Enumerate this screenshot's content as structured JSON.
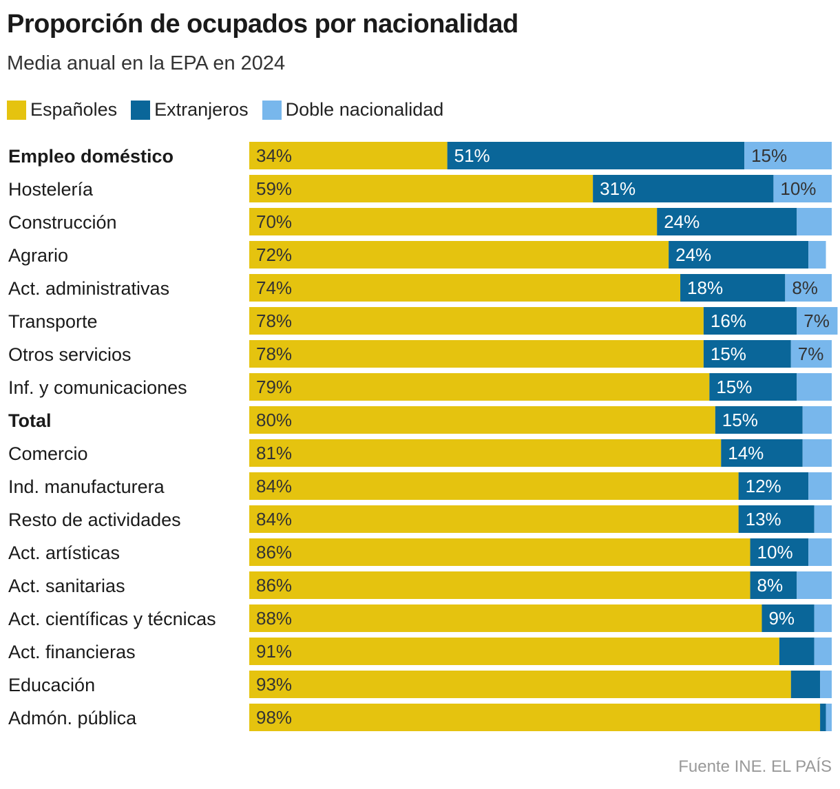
{
  "chart_data": {
    "type": "bar",
    "orientation": "horizontal",
    "stacked": true,
    "title": "Proporción de ocupados por nacionalidad",
    "subtitle": "Media anual en la EPA en 2024",
    "legend_position": "top-left",
    "grid": false,
    "xlim": [
      0,
      100
    ],
    "unit": "%",
    "categories": [
      "Empleo doméstico",
      "Hostelería",
      "Construcción",
      "Agrario",
      "Act. administrativas",
      "Transporte",
      "Otros servicios",
      "Inf. y comunicaciones",
      "Total",
      "Comercio",
      "Ind. manufacturera",
      "Resto de actividades",
      "Act. artísticas",
      "Act. sanitarias",
      "Act. científicas y técnicas",
      "Act. financieras",
      "Educación",
      "Admón. pública"
    ],
    "bold_categories": [
      "Empleo doméstico",
      "Total"
    ],
    "series": [
      {
        "name": "Españoles",
        "color": "#e5c30f",
        "values": [
          34,
          59,
          70,
          72,
          74,
          78,
          78,
          79,
          80,
          81,
          84,
          84,
          86,
          86,
          88,
          91,
          93,
          98
        ],
        "labels": [
          "34%",
          "59%",
          "70%",
          "72%",
          "74%",
          "78%",
          "78%",
          "79%",
          "80%",
          "81%",
          "84%",
          "84%",
          "86%",
          "86%",
          "88%",
          "91%",
          "93%",
          "98%"
        ]
      },
      {
        "name": "Extranjeros",
        "color": "#0a6699",
        "values": [
          51,
          31,
          24,
          24,
          18,
          16,
          15,
          15,
          15,
          14,
          12,
          13,
          10,
          8,
          9,
          6,
          5,
          1
        ],
        "labels": [
          "51%",
          "31%",
          "24%",
          "24%",
          "18%",
          "16%",
          "15%",
          "15%",
          "15%",
          "14%",
          "12%",
          "13%",
          "10%",
          "8%",
          "9%",
          null,
          null,
          null
        ]
      },
      {
        "name": "Doble nacionalidad",
        "color": "#78b7ec",
        "values": [
          15,
          10,
          6,
          3,
          8,
          7,
          7,
          6,
          5,
          5,
          4,
          3,
          4,
          6,
          3,
          3,
          2,
          1
        ],
        "labels": [
          "15%",
          "10%",
          null,
          null,
          "8%",
          "7%",
          "7%",
          null,
          null,
          null,
          null,
          null,
          null,
          null,
          null,
          null,
          null,
          null
        ]
      }
    ],
    "label_colors": {
      "Españoles": "#333333",
      "Extranjeros": "#ffffff",
      "Doble nacionalidad": "#333333"
    }
  },
  "source": "Fuente INE. EL PAÍS"
}
